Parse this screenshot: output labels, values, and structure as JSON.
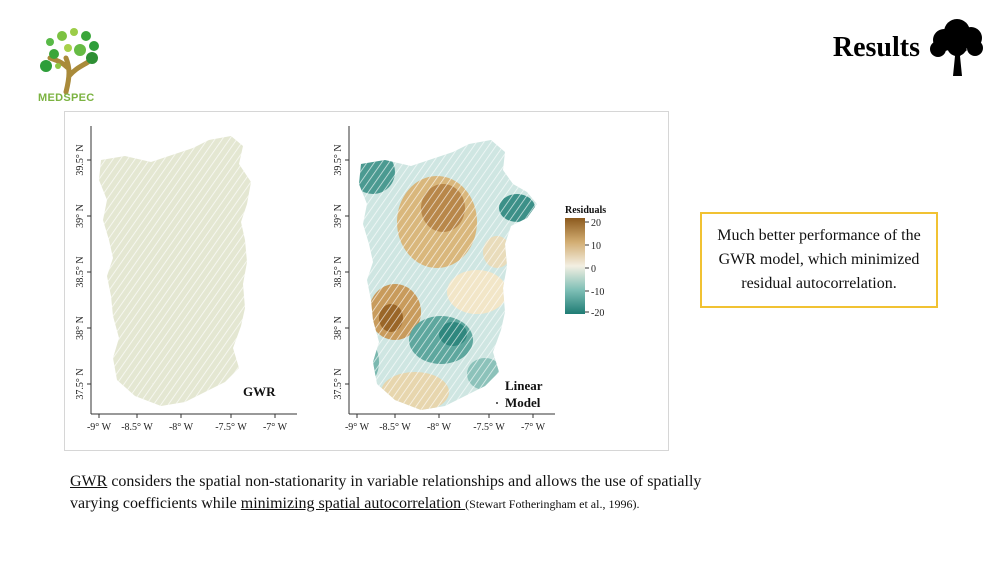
{
  "logo": {
    "name": "MEDSPEC"
  },
  "header": {
    "title": "Results"
  },
  "figure": {
    "left_map": {
      "label": "GWR"
    },
    "right_map": {
      "label_line1": "Linear",
      "label_line2": "Model"
    },
    "y_ticks": [
      "39.5° N",
      "39° N",
      "38.5° N",
      "38° N",
      "37.5° N"
    ],
    "x_ticks": [
      "-9° W",
      "-8.5° W",
      "-8° W",
      "-7.5° W",
      "-7° W"
    ],
    "legend": {
      "title": "Residuals",
      "ticks": [
        "20",
        "10",
        "0",
        "-10",
        "-20"
      ]
    }
  },
  "callout": {
    "text": "Much better performance of the GWR model, which minimized residual autocorrelation."
  },
  "caption": {
    "term1": "GWR",
    "text1": " considers the spatial non-stationarity in variable relationships and allows the use of spatially varying coefficients while ",
    "term2": "minimizing spatial autocorrelation ",
    "citation": "(Stewart Fotheringham et al., 1996)."
  },
  "colors": {
    "accent_yellow": "#f1c232",
    "logo_green": "#7cb342",
    "residual_high": "#8c5a1e",
    "residual_low": "#1f7c74",
    "gwr_fill": "#e4e7d2"
  }
}
